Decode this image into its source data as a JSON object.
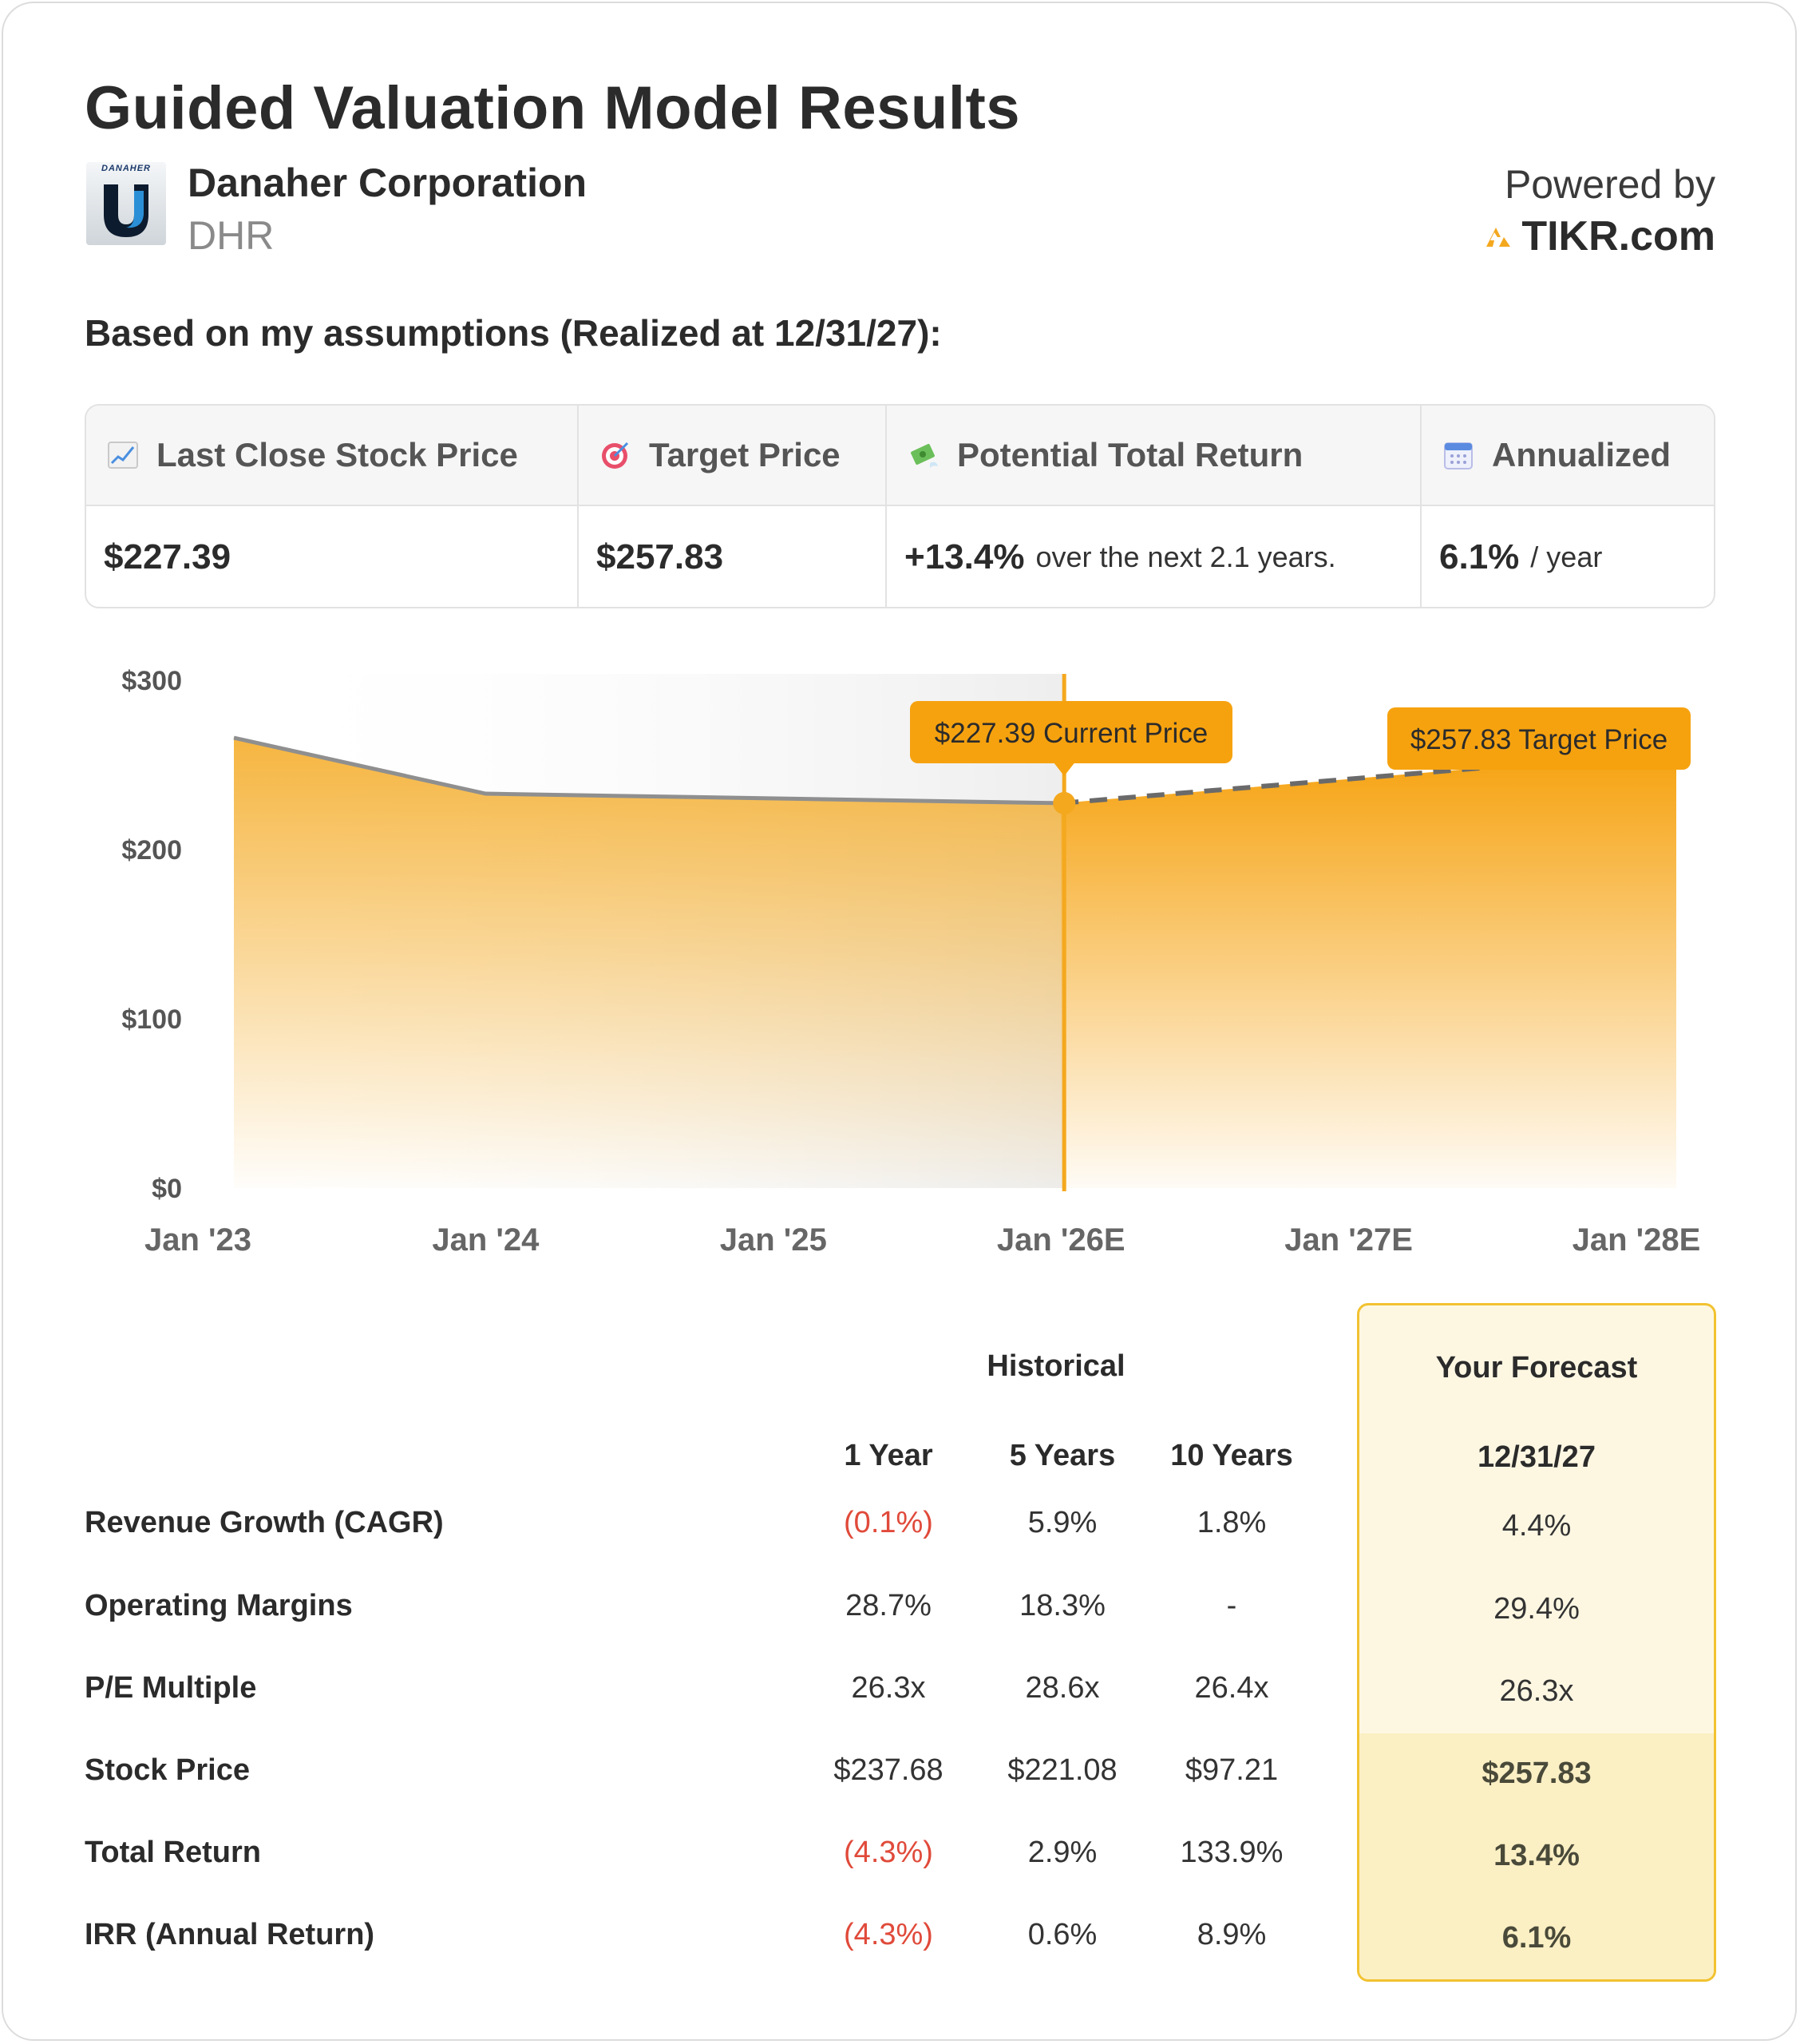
{
  "header": {
    "title": "Guided Valuation Model Results",
    "company_name": "Danaher Corporation",
    "ticker": "DHR",
    "logo_brand": "DANAHER",
    "powered_by": "Powered by",
    "powered_brand": "TIKR.com"
  },
  "subtitle": "Based on my assumptions (Realized at 12/31/27):",
  "metrics": [
    {
      "label": "Last Close Stock Price",
      "icon": "chart-increasing-icon",
      "value": "$227.39",
      "suffix": ""
    },
    {
      "label": "Target Price",
      "icon": "target-icon",
      "value": "$257.83",
      "suffix": ""
    },
    {
      "label": "Potential Total Return",
      "icon": "money-with-wings-icon",
      "value": "+13.4%",
      "suffix": "over the next 2.1 years."
    },
    {
      "label": "Annualized",
      "icon": "calendar-icon",
      "value": "6.1%",
      "suffix": "/ year"
    }
  ],
  "chart_data": {
    "type": "area",
    "x": [
      "Jan '23",
      "Jan '24",
      "Jan '25",
      "Jan '26E",
      "Jan '27E",
      "Jan '28E"
    ],
    "ylim": [
      0,
      300
    ],
    "yticks": [
      "$0",
      "$100",
      "$200",
      "$300"
    ],
    "historical": [
      {
        "x": "Jan '23",
        "y": 266
      },
      {
        "x": "Jan '24",
        "y": 233
      },
      {
        "x": "Jan '26E",
        "y": 227.39
      }
    ],
    "forecast": [
      {
        "x": "Jan '26E",
        "y": 227.39
      },
      {
        "x": "Jan '28E",
        "y": 257.83
      }
    ],
    "annotations": [
      {
        "text": "$227.39 Current Price"
      },
      {
        "text": "$257.83 Target Price"
      }
    ],
    "colors": {
      "fill": "#f4a81e",
      "line_hist": "#8f8f8f",
      "line_forecast": "#6a6a6a",
      "marker": "#f4a81e"
    }
  },
  "table": {
    "historical_label": "Historical",
    "forecast_label": "Your Forecast",
    "columns": [
      "1 Year",
      "5 Years",
      "10 Years"
    ],
    "forecast_date": "12/31/27",
    "rows": [
      {
        "label": "Revenue Growth (CAGR)",
        "values": [
          "(0.1%)",
          "5.9%",
          "1.8%"
        ],
        "forecast": "4.4%"
      },
      {
        "label": "Operating Margins",
        "values": [
          "28.7%",
          "18.3%",
          "-"
        ],
        "forecast": "29.4%"
      },
      {
        "label": "P/E Multiple",
        "values": [
          "26.3x",
          "28.6x",
          "26.4x"
        ],
        "forecast": "26.3x"
      },
      {
        "label": "Stock Price",
        "values": [
          "$237.68",
          "$221.08",
          "$97.21"
        ],
        "forecast": "$257.83"
      },
      {
        "label": "Total Return",
        "values": [
          "(4.3%)",
          "2.9%",
          "133.9%"
        ],
        "forecast": "13.4%"
      },
      {
        "label": "IRR (Annual Return)",
        "values": [
          "(4.3%)",
          "0.6%",
          "8.9%"
        ],
        "forecast": "6.1%"
      }
    ]
  }
}
